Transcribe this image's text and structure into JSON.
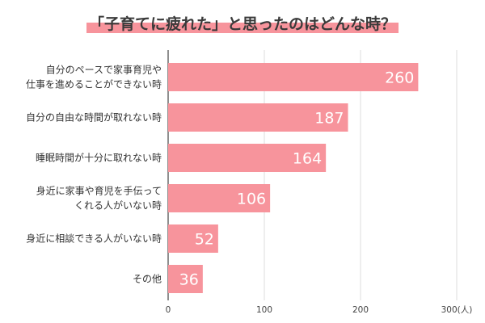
{
  "chart_data": {
    "type": "bar",
    "orientation": "horizontal",
    "title": "「子育てに疲れた」と思ったのはどんな時？",
    "categories": [
      [
        "自分のペースで家事育児や",
        "仕事を進めることができない時"
      ],
      [
        "自分の自由な時間が取れない時"
      ],
      [
        "睡眠時間が十分に取れない時"
      ],
      [
        "身近に家事や育児を手伝って",
        "くれる人がいない時"
      ],
      [
        "身近に相談できる人がいない時"
      ],
      [
        "その他"
      ]
    ],
    "values": [
      260,
      187,
      164,
      106,
      52,
      36
    ],
    "xlim": [
      0,
      300
    ],
    "xticks": [
      "0",
      "100",
      "200",
      "300(人)"
    ],
    "grid": true,
    "data_labels": true,
    "colors": {
      "bar": "#f7949c",
      "title_underline": "#f7949c",
      "grid": "#dddddd",
      "axis": "#444444"
    }
  }
}
